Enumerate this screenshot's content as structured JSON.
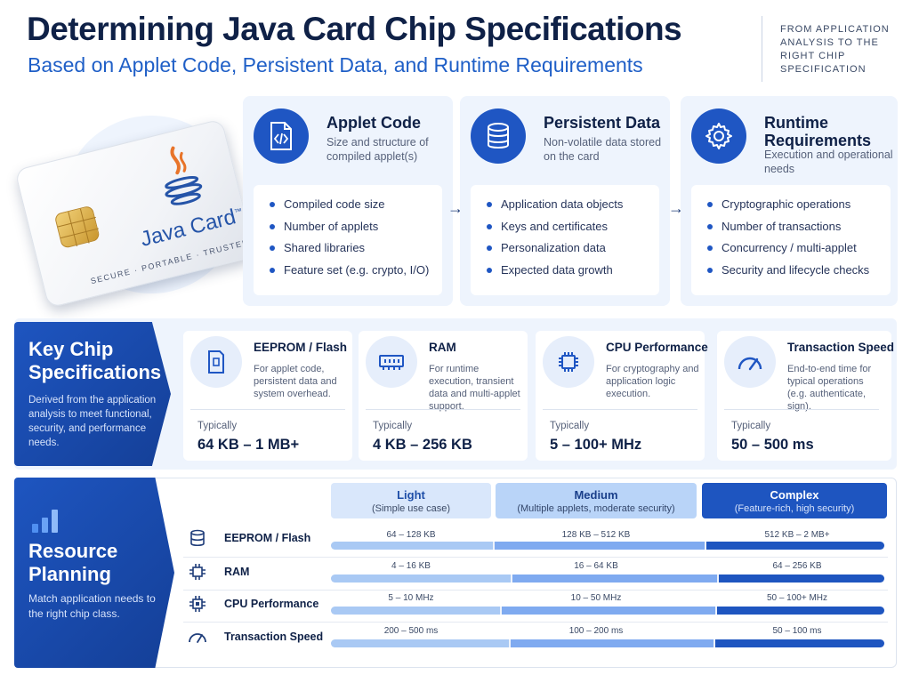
{
  "header": {
    "title": "Determining Java Card Chip Specifications",
    "subtitle": "Based on Applet Code, Persistent Data, and Runtime Requirements",
    "note": "FROM APPLICATION ANALYSIS TO THE RIGHT CHIP SPECIFICATION"
  },
  "card": {
    "brand": "Java Card",
    "tm": "™",
    "tagline": "SECURE · PORTABLE · TRUSTED"
  },
  "inputs": [
    {
      "title": "Applet Code",
      "desc": "Size and structure of compiled applet(s)",
      "icon": "code-file-icon",
      "items": [
        "Compiled code size",
        "Number of applets",
        "Shared libraries",
        "Feature set (e.g. crypto, I/O)"
      ]
    },
    {
      "title": "Persistent Data",
      "desc": "Non-volatile data stored on the card",
      "icon": "database-icon",
      "items": [
        "Application data objects",
        "Keys and certificates",
        "Personalization data",
        "Expected data growth"
      ]
    },
    {
      "title": "Runtime Requirements",
      "desc": "Execution and operational needs",
      "icon": "gear-icon",
      "items": [
        "Cryptographic operations",
        "Number of transactions",
        "Concurrency / multi-applet",
        "Security and lifecycle checks"
      ]
    }
  ],
  "arrows": [
    "→",
    "→"
  ],
  "specs": {
    "heading": "Key Chip Specifications",
    "desc": "Derived from the application analysis to meet functional, security, and performance needs.",
    "typically_label": "Typically",
    "cards": [
      {
        "title": "EEPROM / Flash",
        "desc": "For applet code, persistent data and system overhead.",
        "value": "64 KB – 1 MB+",
        "icon": "memory-card-icon"
      },
      {
        "title": "RAM",
        "desc": "For runtime execution, transient data and multi-applet support.",
        "value": "4 KB – 256 KB",
        "icon": "ram-icon"
      },
      {
        "title": "CPU Performance",
        "desc": "For cryptography and application logic execution.",
        "value": "5 – 100+ MHz",
        "icon": "cpu-icon"
      },
      {
        "title": "Transaction Speed",
        "desc": "End-to-end time for typical operations (e.g. authenticate, sign).",
        "value": "50 – 500 ms",
        "icon": "speedometer-icon"
      }
    ]
  },
  "planning": {
    "heading": "Resource Planning",
    "desc": "Match application needs to the right chip class.",
    "columns": [
      {
        "name": "Light",
        "sub": "(Simple use case)"
      },
      {
        "name": "Medium",
        "sub": "(Multiple applets, moderate security)"
      },
      {
        "name": "Complex",
        "sub": "(Feature-rich, high security)"
      }
    ],
    "rows": [
      {
        "label": "EEPROM / Flash",
        "icon": "database-icon",
        "values": [
          "64 – 128 KB",
          "128 KB – 512 KB",
          "512 KB – 2 MB+"
        ]
      },
      {
        "label": "RAM",
        "icon": "chip-icon",
        "values": [
          "4 – 16 KB",
          "16 – 64 KB",
          "64 – 256 KB"
        ]
      },
      {
        "label": "CPU Performance",
        "icon": "cpu-icon",
        "values": [
          "5 – 10 MHz",
          "10 – 50 MHz",
          "50 – 100+ MHz"
        ]
      },
      {
        "label": "Transaction Speed",
        "icon": "speedometer-icon",
        "values": [
          "200 – 500 ms",
          "100 – 200 ms",
          "50 – 100 ms"
        ]
      }
    ]
  }
}
